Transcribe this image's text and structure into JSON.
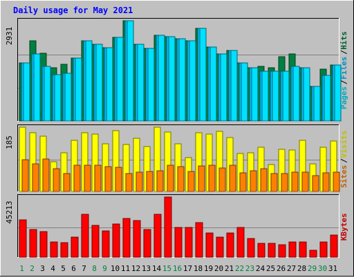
{
  "chart_data": {
    "type": "bar",
    "title": "Daily usage for May 2021",
    "categories": [
      "1",
      "2",
      "3",
      "4",
      "5",
      "6",
      "7",
      "8",
      "9",
      "10",
      "11",
      "12",
      "13",
      "14",
      "15",
      "16",
      "17",
      "18",
      "19",
      "20",
      "21",
      "22",
      "23",
      "24",
      "25",
      "26",
      "27",
      "28",
      "29",
      "30",
      "31"
    ],
    "weekend_days": [
      "1",
      "2",
      "8",
      "9",
      "15",
      "16",
      "22",
      "23",
      "29",
      "30"
    ],
    "panels": [
      {
        "key": "hits_files_pages",
        "max_label": "2931",
        "ylim": [
          0,
          2931
        ],
        "right_legend": [
          "Pages",
          "Files",
          "Hits"
        ],
        "series": [
          {
            "name": "Hits",
            "color": "#008040",
            "values": [
              1694,
              2346,
              1985,
              1550,
              1655,
              1830,
              2345,
              2250,
              2150,
              2453,
              2931,
              2250,
              2130,
              2507,
              2459,
              2415,
              2345,
              2704,
              2161,
              1960,
              2060,
              1694,
              1556,
              1590,
              1560,
              1880,
              1960,
              1564,
              1016,
              1520,
              1640
            ]
          },
          {
            "name": "Files",
            "color": "#00c0ff",
            "values": [
              1694,
              1960,
              1590,
              1352,
              1400,
              1830,
              2345,
              2250,
              2150,
              2453,
              2931,
              2250,
              2130,
              2507,
              2459,
              2415,
              2345,
              2704,
              2161,
              1960,
              2060,
              1694,
              1556,
              1460,
              1460,
              1460,
              1600,
              1564,
              1016,
              1340,
              1640
            ]
          },
          {
            "name": "Pages",
            "color": "#00e0ff",
            "values": [
              1694,
              1960,
              1590,
              1352,
              1400,
              1830,
              2345,
              2250,
              2150,
              2453,
              2931,
              2250,
              2130,
              2507,
              2459,
              2415,
              2345,
              2704,
              2161,
              1960,
              2060,
              1694,
              1556,
              1460,
              1460,
              1460,
              1600,
              1564,
              1016,
              1340,
              1640
            ]
          }
        ]
      },
      {
        "key": "visits_sites",
        "max_label": "185",
        "ylim": [
          0,
          185
        ],
        "right_legend": [
          "Sites",
          "Visits"
        ],
        "series": [
          {
            "name": "Visits",
            "color": "#ffff00",
            "values": [
              185,
              170,
              160,
              85,
              112,
              147,
              170,
              165,
              138,
              175,
              135,
              153,
              130,
              185,
              172,
              137,
              98,
              170,
              165,
              173,
              155,
              110,
              112,
              127,
              78,
              122,
              119,
              147,
              80,
              128,
              145
            ]
          },
          {
            "name": "Sites",
            "color": "#ff8000",
            "values": [
              92,
              80,
              94,
              65,
              52,
              76,
              75,
              75,
              72,
              70,
              52,
              55,
              57,
              60,
              76,
              71,
              58,
              74,
              75,
              68,
              76,
              54,
              59,
              66,
              52,
              52,
              56,
              56,
              45,
              53,
              56
            ]
          }
        ]
      },
      {
        "key": "kbytes",
        "max_label": "45213",
        "ylim": [
          0,
          45213
        ],
        "right_legend": [
          "KBytes"
        ],
        "series": [
          {
            "name": "KBytes",
            "color": "#ff0000",
            "values": [
              28000,
              21000,
              19000,
              11200,
              10800,
              15200,
              32000,
              24000,
              19500,
              25200,
              29000,
              27500,
              21000,
              32000,
              45213,
              22500,
              22200,
              25800,
              18000,
              15000,
              18000,
              22300,
              14000,
              10500,
              10500,
              9500,
              11500,
              11500,
              5000,
              11200,
              16500
            ]
          }
        ]
      }
    ]
  }
}
